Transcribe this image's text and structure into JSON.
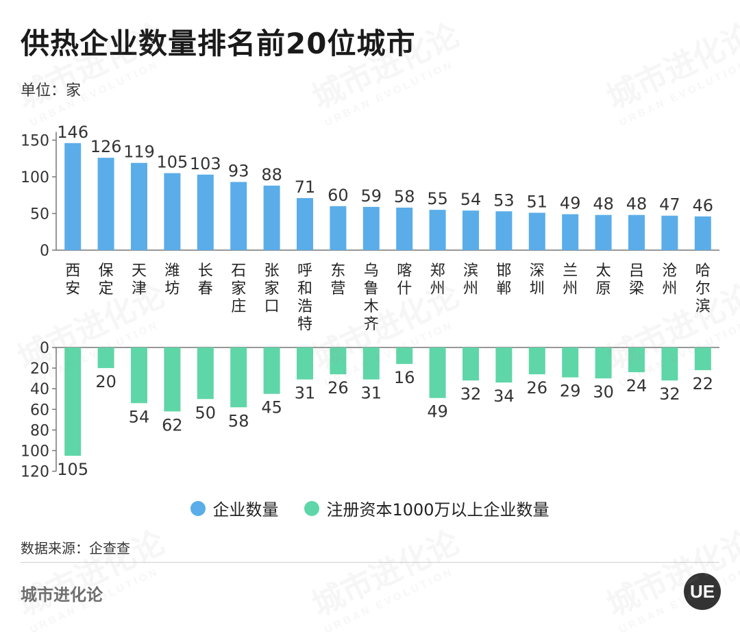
{
  "title": "供热企业数量排名前20位城市",
  "unit": "单位：家",
  "source": "数据来源：企查查",
  "brand": "城市进化论",
  "logo_text": "UE",
  "watermark": {
    "main": "城市进化论",
    "sub": "URBAN EVOLUTION"
  },
  "colors": {
    "blue": "#5aade9",
    "green": "#5fd6a8",
    "axis": "#777777"
  },
  "legend": [
    {
      "label": "企业数量",
      "color": "#5aade9"
    },
    {
      "label": "注册资本1000万以上企业数量",
      "color": "#5fd6a8"
    }
  ],
  "chart_data": {
    "type": "bar",
    "categories": [
      "西安",
      "保定",
      "天津",
      "潍坊",
      "长春",
      "石家庄",
      "张家口",
      "呼和浩特",
      "东营",
      "乌鲁木齐",
      "喀什",
      "郑州",
      "滨州",
      "邯郸",
      "深圳",
      "兰州",
      "太原",
      "吕梁",
      "沧州",
      "哈尔滨"
    ],
    "series": [
      {
        "name": "企业数量",
        "values": [
          146,
          126,
          119,
          105,
          103,
          93,
          88,
          71,
          60,
          59,
          58,
          55,
          54,
          53,
          51,
          49,
          48,
          48,
          47,
          46
        ]
      },
      {
        "name": "注册资本1000万以上企业数量",
        "values": [
          105,
          20,
          54,
          62,
          50,
          58,
          45,
          31,
          26,
          31,
          16,
          49,
          32,
          34,
          26,
          29,
          30,
          24,
          32,
          22
        ]
      }
    ],
    "top_axis": {
      "ylim": [
        0,
        150
      ],
      "ticks": [
        0,
        50,
        100,
        150
      ]
    },
    "bottom_axis": {
      "ylim": [
        0,
        120
      ],
      "ticks": [
        0,
        20,
        40,
        60,
        80,
        100,
        120
      ],
      "inverted": true
    },
    "legend_position": "bottom"
  }
}
